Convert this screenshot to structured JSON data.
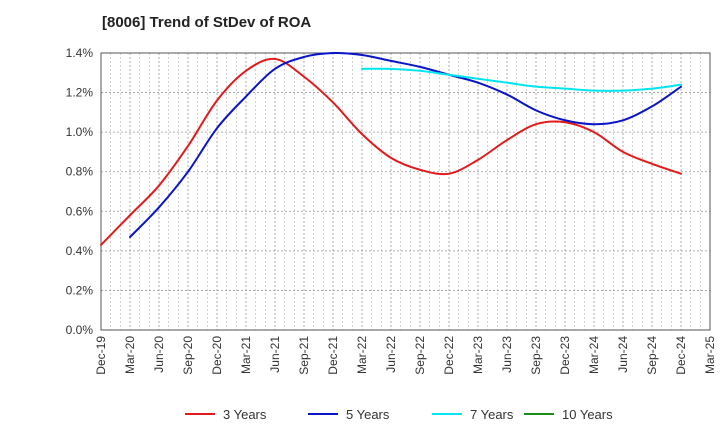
{
  "chart_data": {
    "type": "line",
    "title": "[8006]  Trend of StDev of ROA",
    "xlabel": "",
    "ylabel": "",
    "ylim": [
      0,
      1.4
    ],
    "y_ticks": [
      "0.0%",
      "0.2%",
      "0.4%",
      "0.6%",
      "0.8%",
      "1.0%",
      "1.2%",
      "1.4%"
    ],
    "y_tick_values": [
      0,
      0.2,
      0.4,
      0.6,
      0.8,
      1.0,
      1.2,
      1.4
    ],
    "categories": [
      "Dec-19",
      "Mar-20",
      "Jun-20",
      "Sep-20",
      "Dec-20",
      "Mar-21",
      "Jun-21",
      "Sep-21",
      "Dec-21",
      "Mar-22",
      "Jun-22",
      "Sep-22",
      "Dec-22",
      "Mar-23",
      "Jun-23",
      "Sep-23",
      "Dec-23",
      "Mar-24",
      "Jun-24",
      "Sep-24",
      "Dec-24",
      "Mar-25"
    ],
    "grid": true,
    "legend_position": "bottom",
    "series": [
      {
        "name": "3 Years",
        "color": "#e31a1c",
        "values": [
          0.43,
          0.58,
          0.73,
          0.93,
          1.16,
          1.31,
          1.37,
          1.28,
          1.15,
          0.99,
          0.87,
          0.81,
          0.79,
          0.86,
          0.96,
          1.04,
          1.05,
          1.0,
          0.9,
          0.84,
          0.79,
          null
        ]
      },
      {
        "name": "5 Years",
        "color": "#0a14c8",
        "values": [
          null,
          0.47,
          0.62,
          0.8,
          1.02,
          1.18,
          1.32,
          1.38,
          1.4,
          1.39,
          1.36,
          1.33,
          1.29,
          1.25,
          1.19,
          1.11,
          1.06,
          1.04,
          1.06,
          1.13,
          1.23,
          null
        ]
      },
      {
        "name": "7 Years",
        "color": "#00e5f0",
        "values": [
          null,
          null,
          null,
          null,
          null,
          null,
          null,
          null,
          null,
          1.32,
          1.32,
          1.31,
          1.29,
          1.27,
          1.25,
          1.23,
          1.22,
          1.21,
          1.21,
          1.22,
          1.24,
          null
        ]
      },
      {
        "name": "10 Years",
        "color": "#1a8c1a",
        "values": [
          null,
          null,
          null,
          null,
          null,
          null,
          null,
          null,
          null,
          null,
          null,
          null,
          null,
          null,
          null,
          null,
          null,
          null,
          null,
          null,
          null,
          null
        ]
      }
    ]
  }
}
